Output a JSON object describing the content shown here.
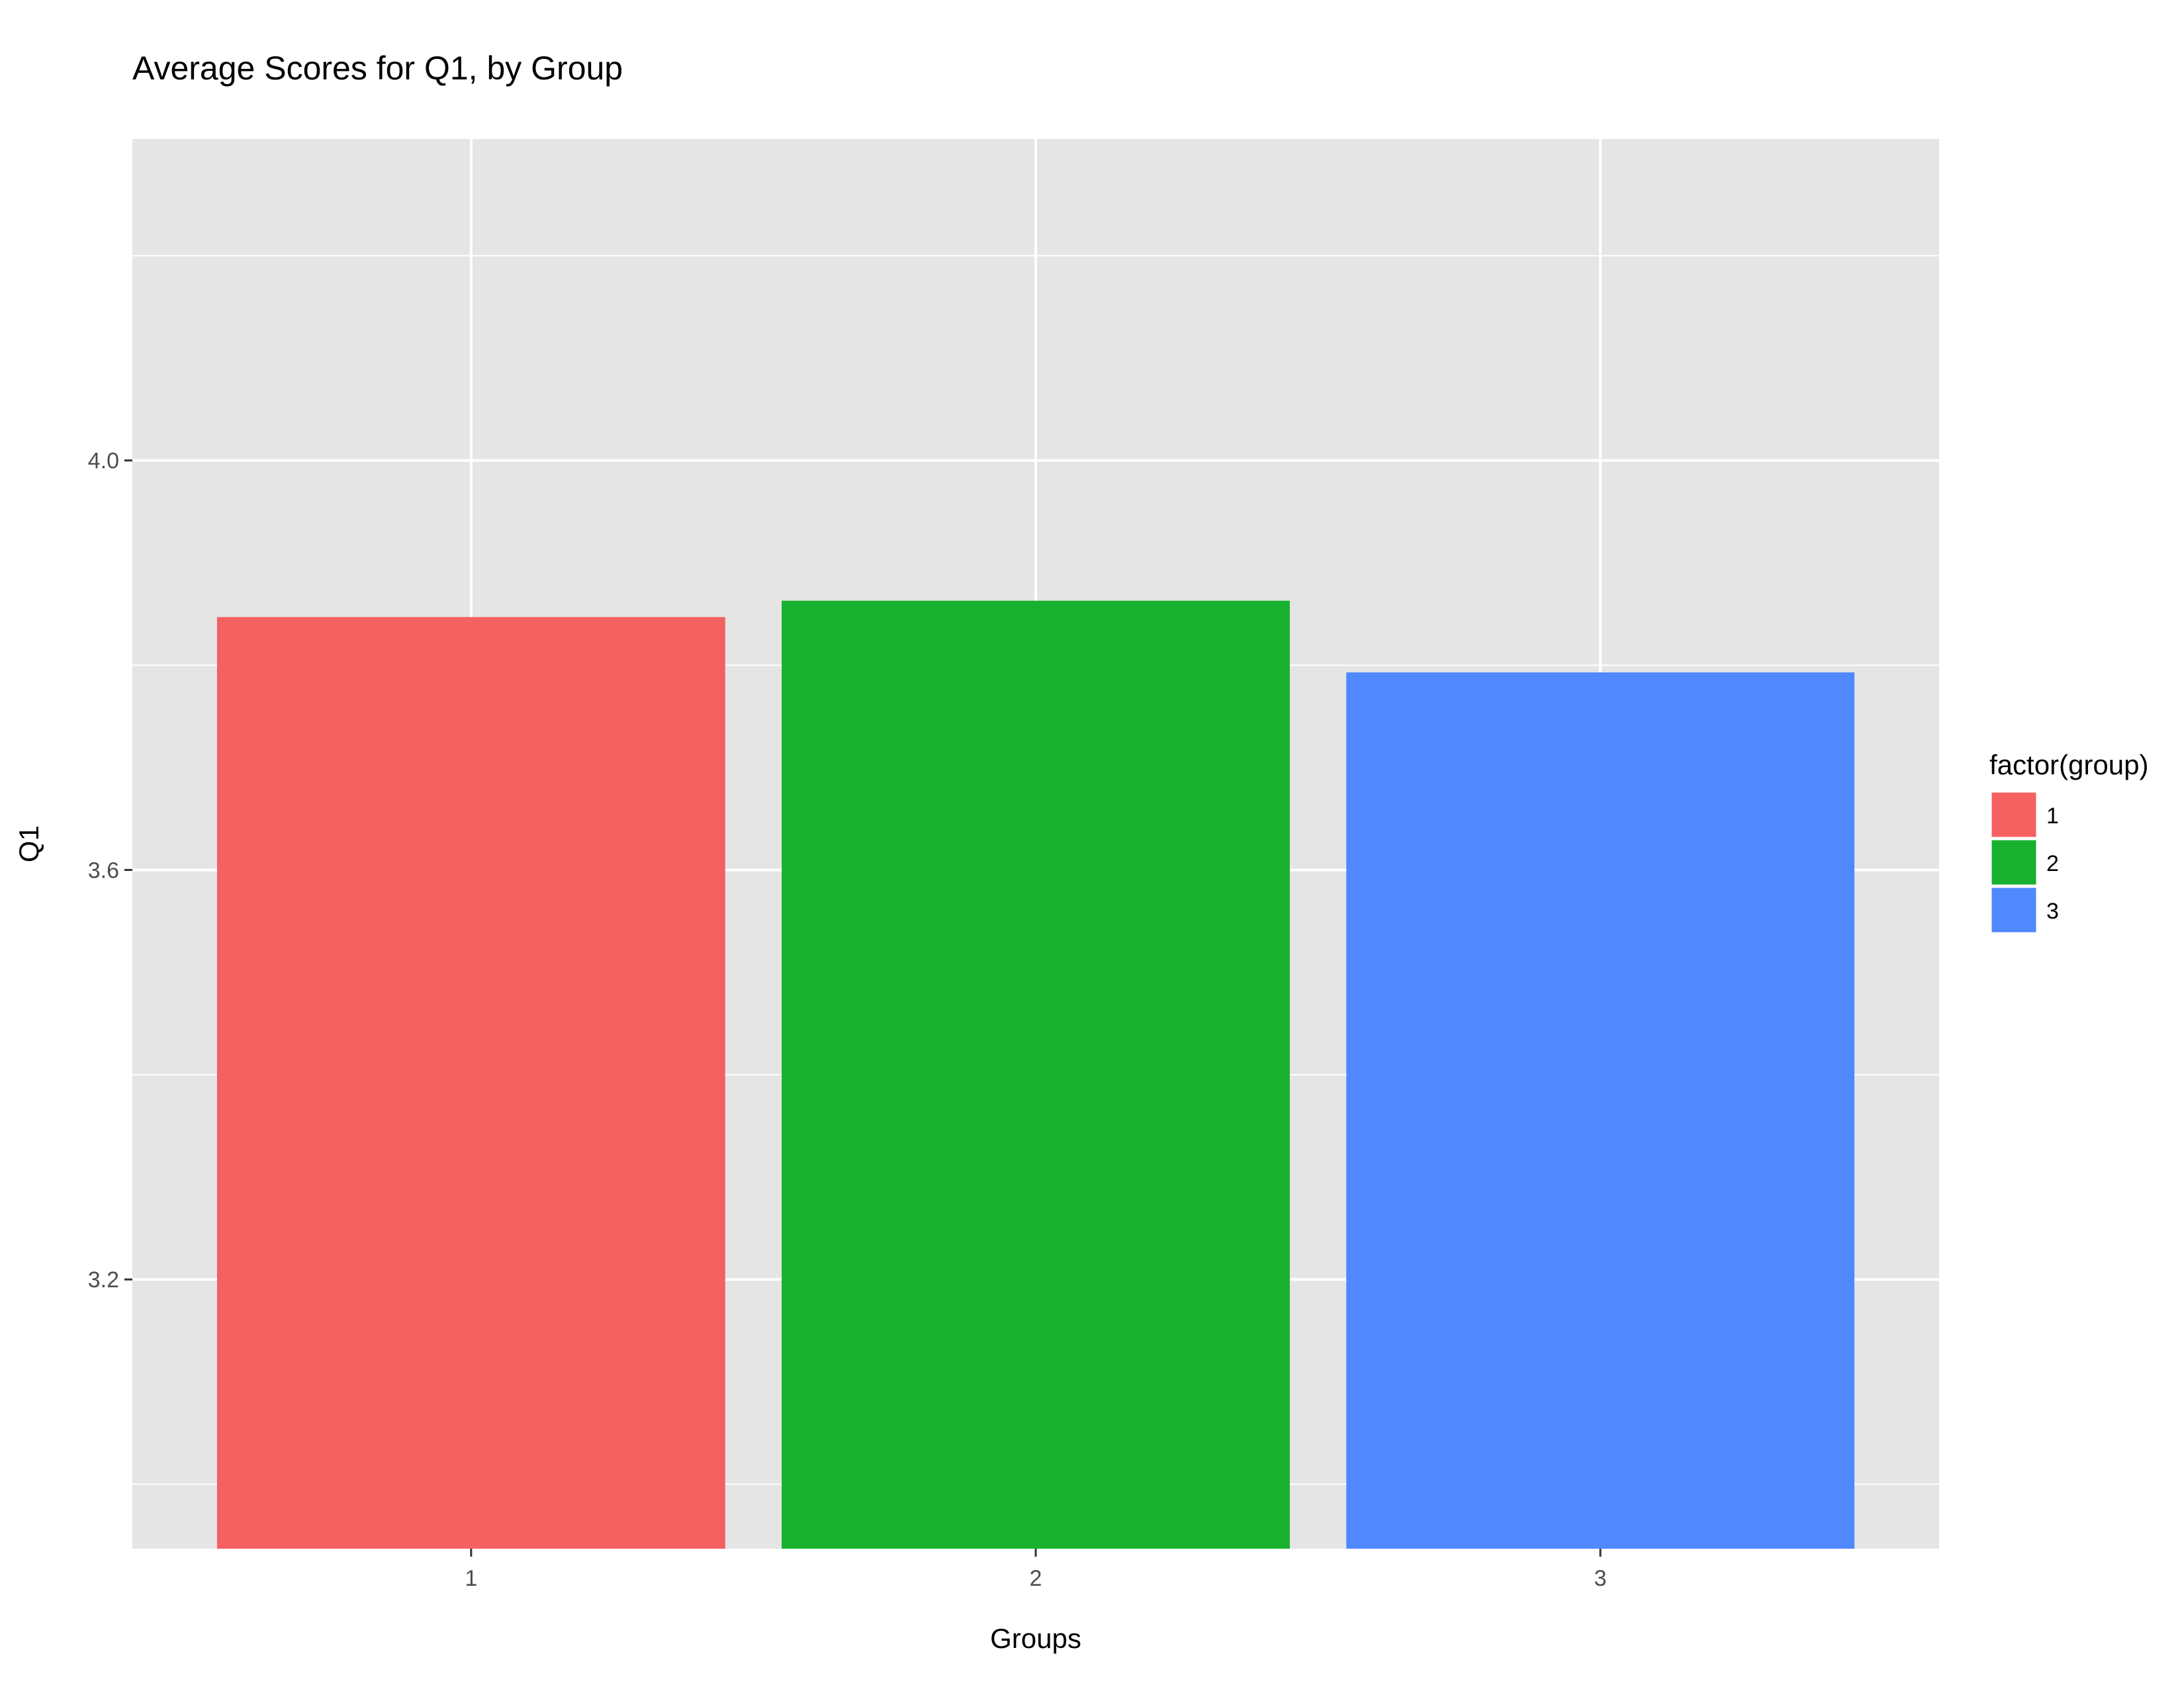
{
  "chart_data": {
    "type": "bar",
    "title": "Average Scores for Q1, by Group",
    "xlabel": "Groups",
    "ylabel": "Q1",
    "categories": [
      "1",
      "2",
      "3"
    ],
    "values": [
      3.847,
      3.863,
      3.793
    ],
    "colors": [
      "#F46160",
      "#18B12F",
      "#5088FF"
    ],
    "ylim": [
      2.937,
      4.314
    ],
    "y_ticks": [
      3.2,
      3.6,
      4.0
    ],
    "y_tick_labels": [
      "3.2",
      "3.6",
      "4.0"
    ],
    "grid": true,
    "panel_color": "#E5E5E5",
    "legend": {
      "title": "factor(group)",
      "position": "right",
      "entries": [
        "1",
        "2",
        "3"
      ]
    }
  }
}
